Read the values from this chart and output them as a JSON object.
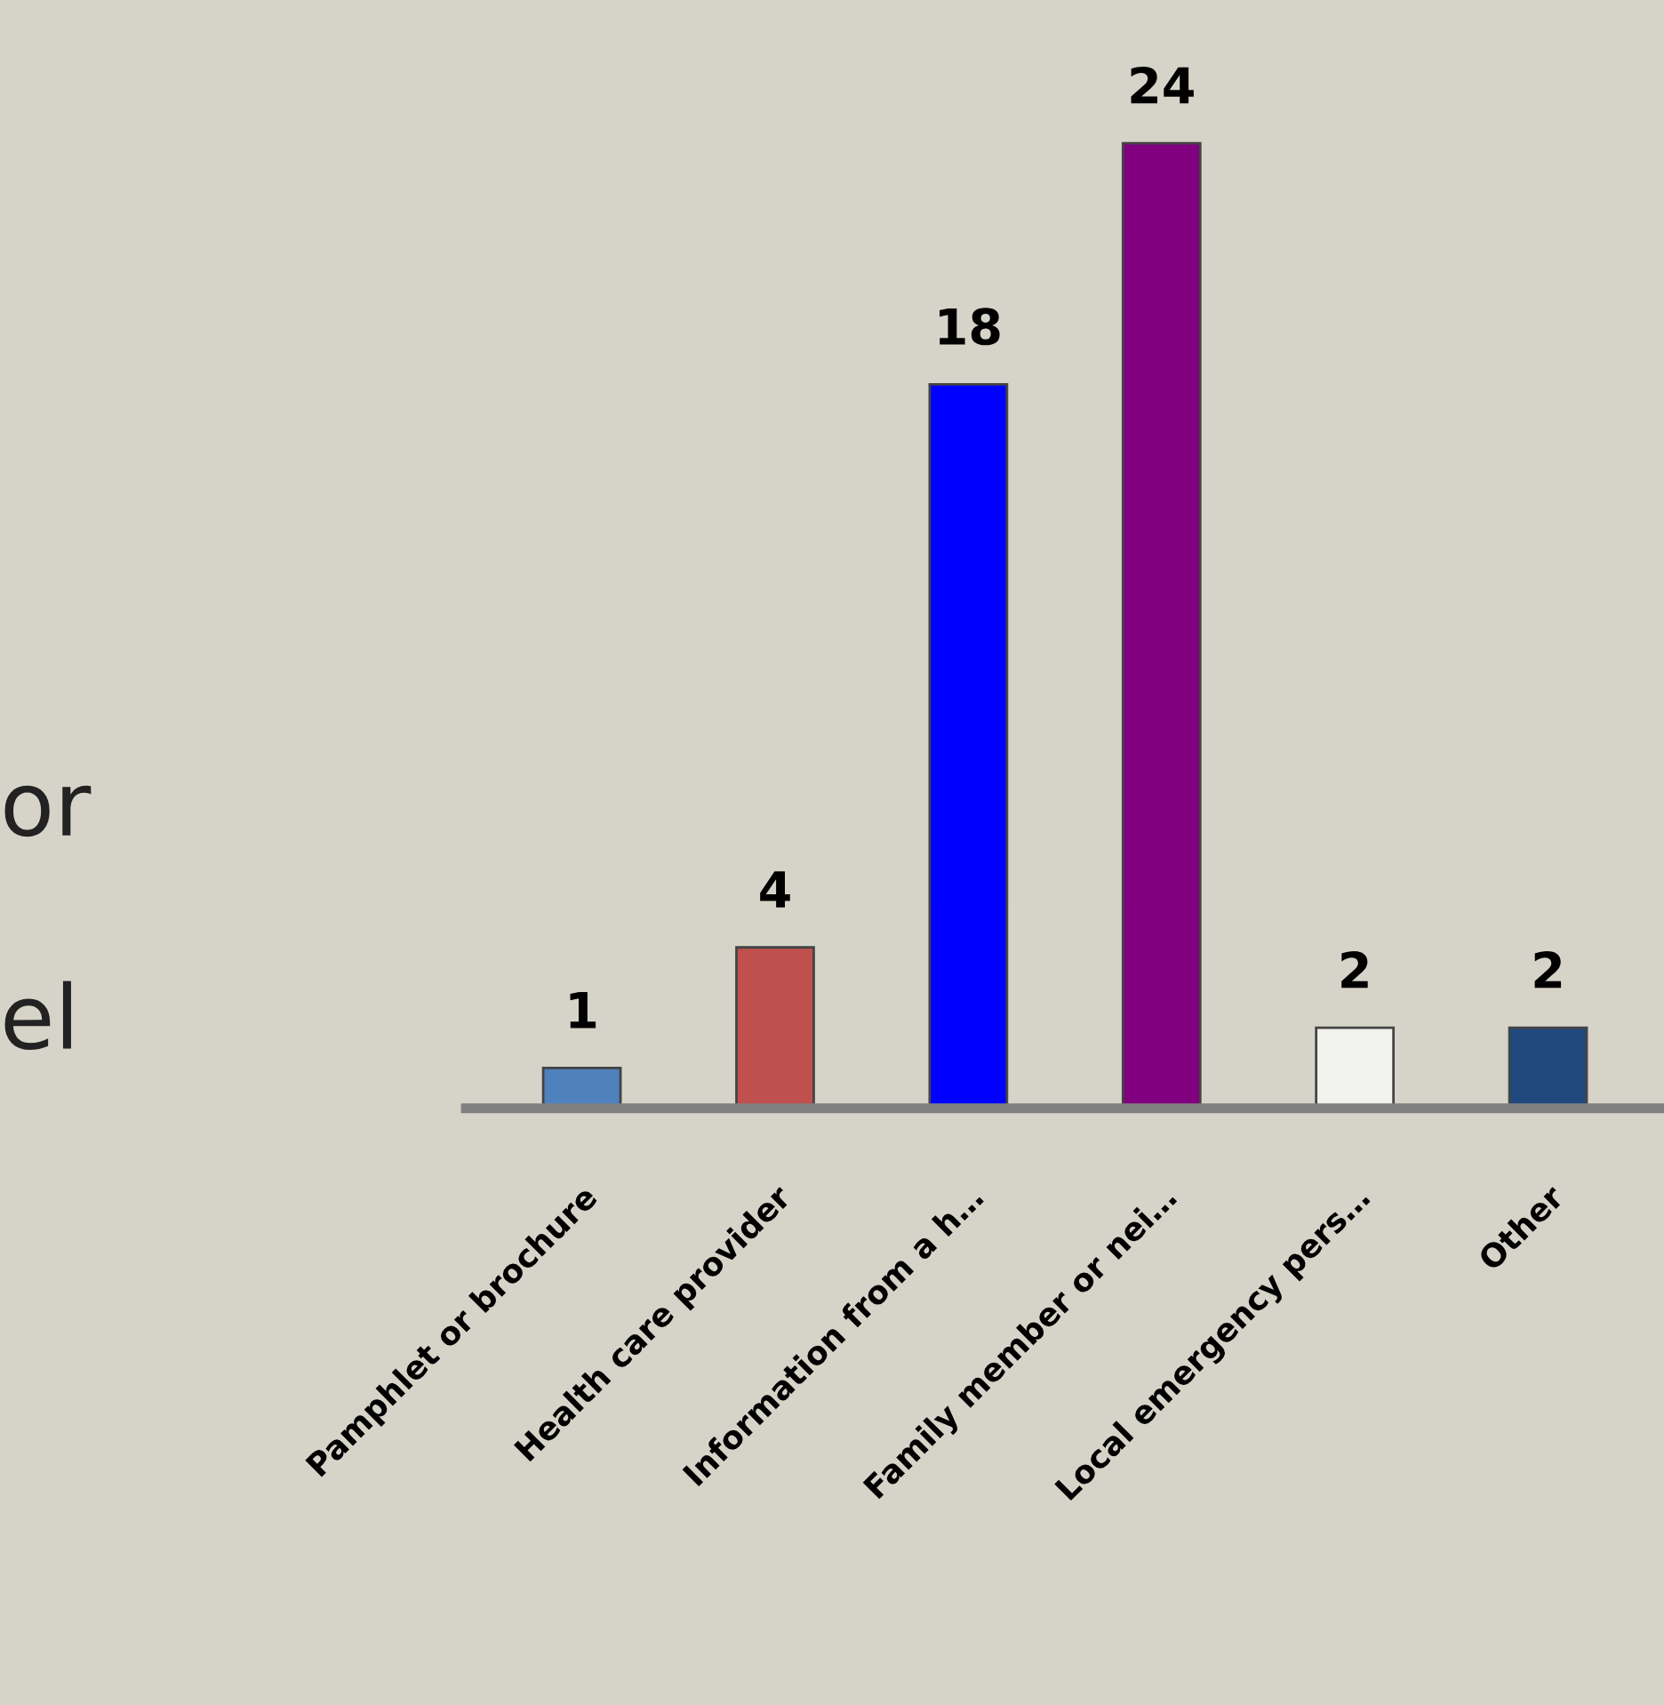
{
  "chart_data": {
    "type": "bar",
    "categories": [
      "Pamphlet or brochure",
      "Health care provider",
      "Information from a h…",
      "Family member or nei…",
      "Local emergency pers…",
      "Other"
    ],
    "values": [
      1,
      4,
      18,
      24,
      2,
      2
    ],
    "colors": [
      "#4f81bd",
      "#c0504d",
      "#0000ff",
      "#800080",
      "#f2f2ee",
      "#1f497d"
    ],
    "data_labels": true,
    "annotations": [
      "or",
      "el"
    ]
  }
}
